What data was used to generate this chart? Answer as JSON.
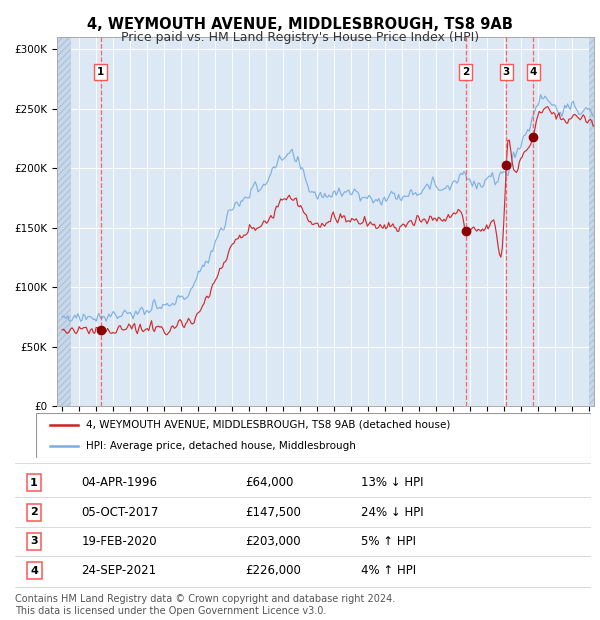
{
  "title": "4, WEYMOUTH AVENUE, MIDDLESBROUGH, TS8 9AB",
  "subtitle": "Price paid vs. HM Land Registry's House Price Index (HPI)",
  "ylim": [
    0,
    310000
  ],
  "yticks": [
    0,
    50000,
    100000,
    150000,
    200000,
    250000,
    300000
  ],
  "ytick_labels": [
    "£0",
    "£50K",
    "£100K",
    "£150K",
    "£200K",
    "£250K",
    "£300K"
  ],
  "xlim_start": 1993.7,
  "xlim_end": 2025.3,
  "hpi_color": "#7aade0",
  "price_color": "#cc2222",
  "sale_dot_color": "#8b0000",
  "vline_color": "#ff5555",
  "background_color": "#dde8f5",
  "grid_color": "#ffffff",
  "title_fontsize": 10.5,
  "subtitle_fontsize": 9,
  "legend_label_price": "4, WEYMOUTH AVENUE, MIDDLESBROUGH, TS8 9AB (detached house)",
  "legend_label_hpi": "HPI: Average price, detached house, Middlesbrough",
  "sales": [
    {
      "num": 1,
      "date": "04-APR-1996",
      "date_x": 1996.26,
      "price": 64000,
      "pct": "13%",
      "dir": "↓"
    },
    {
      "num": 2,
      "date": "05-OCT-2017",
      "date_x": 2017.76,
      "price": 147500,
      "pct": "24%",
      "dir": "↓"
    },
    {
      "num": 3,
      "date": "19-FEB-2020",
      "date_x": 2020.13,
      "price": 203000,
      "pct": "5%",
      "dir": "↑"
    },
    {
      "num": 4,
      "date": "24-SEP-2021",
      "date_x": 2021.73,
      "price": 226000,
      "pct": "4%",
      "dir": "↑"
    }
  ],
  "footer": "Contains HM Land Registry data © Crown copyright and database right 2024.\nThis data is licensed under the Open Government Licence v3.0.",
  "footer_fontsize": 7.0,
  "hatch_left_end": 1994.5,
  "hatch_right_start": 2025.0
}
